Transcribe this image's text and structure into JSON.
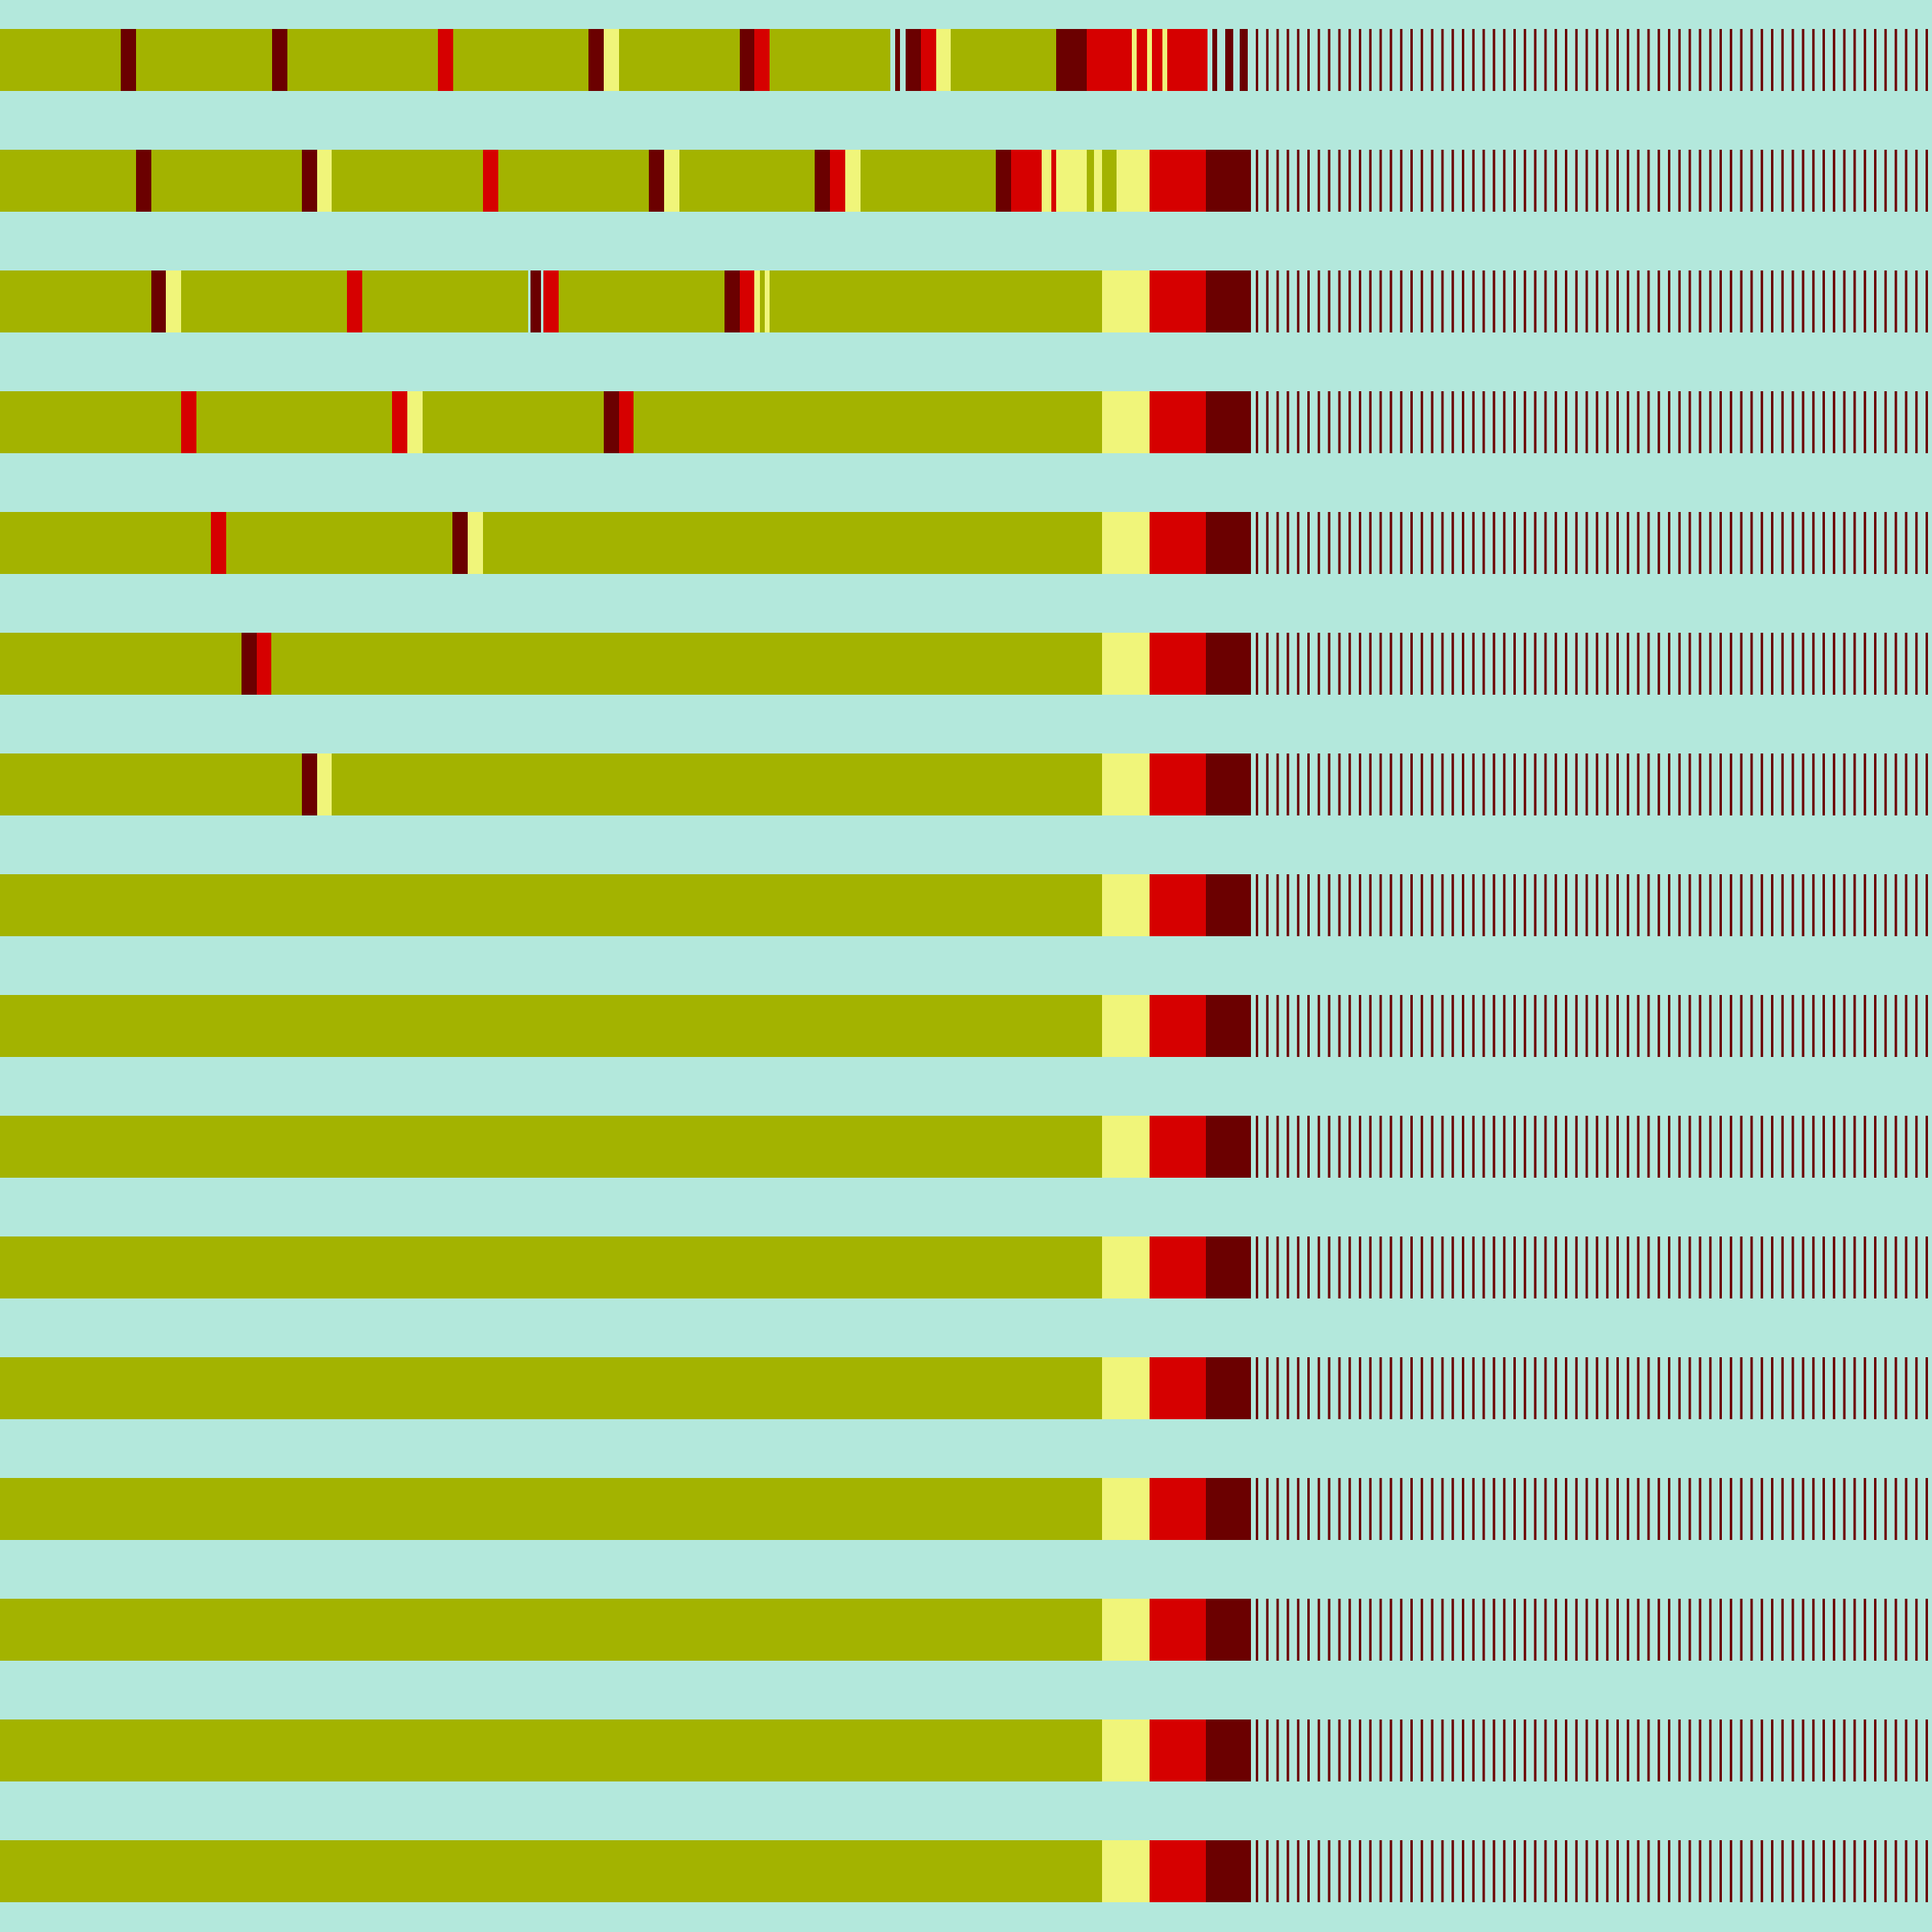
{
  "colors": {
    "background": "#b3e8dc",
    "olive": "#a3b300",
    "light_yellow": "#f0f57a",
    "red": "#d60000",
    "dark_red": "#6b0000"
  },
  "rows": [
    {
      "blocks": [
        {
          "c": "olive",
          "s": 0,
          "e": 150
        },
        {
          "c": "dark_red",
          "s": 150,
          "e": 169
        },
        {
          "c": "olive",
          "s": 169,
          "e": 338
        },
        {
          "c": "dark_red",
          "s": 338,
          "e": 357
        },
        {
          "c": "olive",
          "s": 357,
          "e": 544
        },
        {
          "c": "red",
          "s": 544,
          "e": 563
        },
        {
          "c": "olive",
          "s": 563,
          "e": 731
        },
        {
          "c": "dark_red",
          "s": 731,
          "e": 750
        },
        {
          "c": "light_yellow",
          "s": 750,
          "e": 769
        },
        {
          "c": "olive",
          "s": 769,
          "e": 919
        },
        {
          "c": "dark_red",
          "s": 919,
          "e": 937
        },
        {
          "c": "red",
          "s": 937,
          "e": 956
        },
        {
          "c": "olive",
          "s": 956,
          "e": 1106
        },
        {
          "c": "dark_red",
          "s": 1112,
          "e": 1118
        },
        {
          "c": "dark_red",
          "s": 1125,
          "e": 1144
        },
        {
          "c": "red",
          "s": 1144,
          "e": 1163
        },
        {
          "c": "light_yellow",
          "s": 1163,
          "e": 1181
        },
        {
          "c": "olive",
          "s": 1181,
          "e": 1312
        },
        {
          "c": "dark_red",
          "s": 1312,
          "e": 1350
        },
        {
          "c": "red",
          "s": 1350,
          "e": 1406
        },
        {
          "c": "light_yellow",
          "s": 1406,
          "e": 1412
        },
        {
          "c": "red",
          "s": 1412,
          "e": 1425
        },
        {
          "c": "light_yellow",
          "s": 1425,
          "e": 1431
        },
        {
          "c": "red",
          "s": 1431,
          "e": 1444
        },
        {
          "c": "light_yellow",
          "s": 1444,
          "e": 1450
        },
        {
          "c": "red",
          "s": 1450,
          "e": 1500
        },
        {
          "c": "dark_red",
          "s": 1506,
          "e": 1512
        },
        {
          "c": "dark_red",
          "s": 1522,
          "e": 1532
        },
        {
          "c": "dark_red",
          "s": 1540,
          "e": 1550
        }
      ],
      "stripes_from": 1560
    },
    {
      "blocks": [
        {
          "c": "olive",
          "s": 0,
          "e": 169
        },
        {
          "c": "dark_red",
          "s": 169,
          "e": 188
        },
        {
          "c": "olive",
          "s": 188,
          "e": 375
        },
        {
          "c": "dark_red",
          "s": 375,
          "e": 394
        },
        {
          "c": "light_yellow",
          "s": 394,
          "e": 412
        },
        {
          "c": "olive",
          "s": 412,
          "e": 600
        },
        {
          "c": "red",
          "s": 600,
          "e": 619
        },
        {
          "c": "olive",
          "s": 619,
          "e": 806
        },
        {
          "c": "dark_red",
          "s": 806,
          "e": 825
        },
        {
          "c": "light_yellow",
          "s": 825,
          "e": 844
        },
        {
          "c": "olive",
          "s": 844,
          "e": 1012
        },
        {
          "c": "dark_red",
          "s": 1012,
          "e": 1031
        },
        {
          "c": "red",
          "s": 1031,
          "e": 1050
        },
        {
          "c": "light_yellow",
          "s": 1050,
          "e": 1069
        },
        {
          "c": "olive",
          "s": 1069,
          "e": 1237
        },
        {
          "c": "dark_red",
          "s": 1237,
          "e": 1256
        },
        {
          "c": "red",
          "s": 1256,
          "e": 1294
        },
        {
          "c": "light_yellow",
          "s": 1294,
          "e": 1306
        },
        {
          "c": "red",
          "s": 1306,
          "e": 1312
        },
        {
          "c": "light_yellow",
          "s": 1312,
          "e": 1350
        },
        {
          "c": "olive",
          "s": 1350,
          "e": 1359
        },
        {
          "c": "light_yellow",
          "s": 1359,
          "e": 1369
        },
        {
          "c": "olive",
          "s": 1369,
          "e": 1387
        },
        {
          "c": "light_yellow",
          "s": 1387,
          "e": 1428
        },
        {
          "c": "red",
          "s": 1428,
          "e": 1498
        },
        {
          "c": "dark_red",
          "s": 1498,
          "e": 1554
        }
      ],
      "stripes_from": 1560
    },
    {
      "blocks": [
        {
          "c": "olive",
          "s": 0,
          "e": 188
        },
        {
          "c": "dark_red",
          "s": 188,
          "e": 206
        },
        {
          "c": "light_yellow",
          "s": 206,
          "e": 225
        },
        {
          "c": "olive",
          "s": 225,
          "e": 431
        },
        {
          "c": "red",
          "s": 431,
          "e": 450
        },
        {
          "c": "olive",
          "s": 450,
          "e": 656
        },
        {
          "c": "dark_red",
          "s": 659,
          "e": 672
        },
        {
          "c": "red",
          "s": 675,
          "e": 694
        },
        {
          "c": "olive",
          "s": 694,
          "e": 900
        },
        {
          "c": "dark_red",
          "s": 900,
          "e": 919
        },
        {
          "c": "red",
          "s": 919,
          "e": 937
        },
        {
          "c": "light_yellow",
          "s": 937,
          "e": 944
        },
        {
          "c": "olive",
          "s": 944,
          "e": 950
        },
        {
          "c": "light_yellow",
          "s": 950,
          "e": 956
        },
        {
          "c": "olive",
          "s": 956,
          "e": 1369
        },
        {
          "c": "light_yellow",
          "s": 1369,
          "e": 1428
        },
        {
          "c": "red",
          "s": 1428,
          "e": 1498
        },
        {
          "c": "dark_red",
          "s": 1498,
          "e": 1554
        }
      ],
      "stripes_from": 1560
    },
    {
      "blocks": [
        {
          "c": "olive",
          "s": 0,
          "e": 225
        },
        {
          "c": "red",
          "s": 225,
          "e": 244
        },
        {
          "c": "olive",
          "s": 244,
          "e": 487
        },
        {
          "c": "red",
          "s": 487,
          "e": 506
        },
        {
          "c": "light_yellow",
          "s": 506,
          "e": 525
        },
        {
          "c": "olive",
          "s": 525,
          "e": 750
        },
        {
          "c": "dark_red",
          "s": 750,
          "e": 769
        },
        {
          "c": "red",
          "s": 769,
          "e": 787
        },
        {
          "c": "olive",
          "s": 787,
          "e": 1369
        },
        {
          "c": "light_yellow",
          "s": 1369,
          "e": 1428
        },
        {
          "c": "red",
          "s": 1428,
          "e": 1498
        },
        {
          "c": "dark_red",
          "s": 1498,
          "e": 1554
        }
      ],
      "stripes_from": 1560
    },
    {
      "blocks": [
        {
          "c": "olive",
          "s": 0,
          "e": 262
        },
        {
          "c": "red",
          "s": 262,
          "e": 281
        },
        {
          "c": "olive",
          "s": 281,
          "e": 562
        },
        {
          "c": "dark_red",
          "s": 562,
          "e": 581
        },
        {
          "c": "light_yellow",
          "s": 581,
          "e": 600
        },
        {
          "c": "olive",
          "s": 600,
          "e": 1369
        },
        {
          "c": "light_yellow",
          "s": 1369,
          "e": 1428
        },
        {
          "c": "red",
          "s": 1428,
          "e": 1498
        },
        {
          "c": "dark_red",
          "s": 1498,
          "e": 1554
        }
      ],
      "stripes_from": 1560
    },
    {
      "blocks": [
        {
          "c": "olive",
          "s": 0,
          "e": 300
        },
        {
          "c": "dark_red",
          "s": 300,
          "e": 319
        },
        {
          "c": "red",
          "s": 319,
          "e": 337
        },
        {
          "c": "olive",
          "s": 337,
          "e": 1369
        },
        {
          "c": "light_yellow",
          "s": 1369,
          "e": 1428
        },
        {
          "c": "red",
          "s": 1428,
          "e": 1498
        },
        {
          "c": "dark_red",
          "s": 1498,
          "e": 1554
        }
      ],
      "stripes_from": 1560
    },
    {
      "blocks": [
        {
          "c": "olive",
          "s": 0,
          "e": 375
        },
        {
          "c": "dark_red",
          "s": 375,
          "e": 394
        },
        {
          "c": "light_yellow",
          "s": 394,
          "e": 412
        },
        {
          "c": "olive",
          "s": 412,
          "e": 1369
        },
        {
          "c": "light_yellow",
          "s": 1369,
          "e": 1428
        },
        {
          "c": "red",
          "s": 1428,
          "e": 1498
        },
        {
          "c": "dark_red",
          "s": 1498,
          "e": 1554
        }
      ],
      "stripes_from": 1560
    },
    {
      "blocks": [
        {
          "c": "olive",
          "s": 0,
          "e": 1369
        },
        {
          "c": "light_yellow",
          "s": 1369,
          "e": 1428
        },
        {
          "c": "red",
          "s": 1428,
          "e": 1498
        },
        {
          "c": "dark_red",
          "s": 1498,
          "e": 1554
        }
      ],
      "stripes_from": 1560
    },
    {
      "blocks": [
        {
          "c": "olive",
          "s": 0,
          "e": 1369
        },
        {
          "c": "light_yellow",
          "s": 1369,
          "e": 1428
        },
        {
          "c": "red",
          "s": 1428,
          "e": 1498
        },
        {
          "c": "dark_red",
          "s": 1498,
          "e": 1554
        }
      ],
      "stripes_from": 1560
    },
    {
      "blocks": [
        {
          "c": "olive",
          "s": 0,
          "e": 1369
        },
        {
          "c": "light_yellow",
          "s": 1369,
          "e": 1428
        },
        {
          "c": "red",
          "s": 1428,
          "e": 1498
        },
        {
          "c": "dark_red",
          "s": 1498,
          "e": 1554
        }
      ],
      "stripes_from": 1560
    },
    {
      "blocks": [
        {
          "c": "olive",
          "s": 0,
          "e": 1369
        },
        {
          "c": "light_yellow",
          "s": 1369,
          "e": 1428
        },
        {
          "c": "red",
          "s": 1428,
          "e": 1498
        },
        {
          "c": "dark_red",
          "s": 1498,
          "e": 1554
        }
      ],
      "stripes_from": 1560
    },
    {
      "blocks": [
        {
          "c": "olive",
          "s": 0,
          "e": 1369
        },
        {
          "c": "light_yellow",
          "s": 1369,
          "e": 1428
        },
        {
          "c": "red",
          "s": 1428,
          "e": 1498
        },
        {
          "c": "dark_red",
          "s": 1498,
          "e": 1554
        }
      ],
      "stripes_from": 1560
    },
    {
      "blocks": [
        {
          "c": "olive",
          "s": 0,
          "e": 1369
        },
        {
          "c": "light_yellow",
          "s": 1369,
          "e": 1428
        },
        {
          "c": "red",
          "s": 1428,
          "e": 1498
        },
        {
          "c": "dark_red",
          "s": 1498,
          "e": 1554
        }
      ],
      "stripes_from": 1560
    },
    {
      "blocks": [
        {
          "c": "olive",
          "s": 0,
          "e": 1369
        },
        {
          "c": "light_yellow",
          "s": 1369,
          "e": 1428
        },
        {
          "c": "red",
          "s": 1428,
          "e": 1498
        },
        {
          "c": "dark_red",
          "s": 1498,
          "e": 1554
        }
      ],
      "stripes_from": 1560
    },
    {
      "blocks": [
        {
          "c": "olive",
          "s": 0,
          "e": 1369
        },
        {
          "c": "light_yellow",
          "s": 1369,
          "e": 1428
        },
        {
          "c": "red",
          "s": 1428,
          "e": 1498
        },
        {
          "c": "dark_red",
          "s": 1498,
          "e": 1554
        }
      ],
      "stripes_from": 1560
    },
    {
      "blocks": [
        {
          "c": "olive",
          "s": 0,
          "e": 1369
        },
        {
          "c": "light_yellow",
          "s": 1369,
          "e": 1428
        },
        {
          "c": "red",
          "s": 1428,
          "e": 1498
        },
        {
          "c": "dark_red",
          "s": 1498,
          "e": 1554
        }
      ],
      "stripes_from": 1560
    }
  ]
}
